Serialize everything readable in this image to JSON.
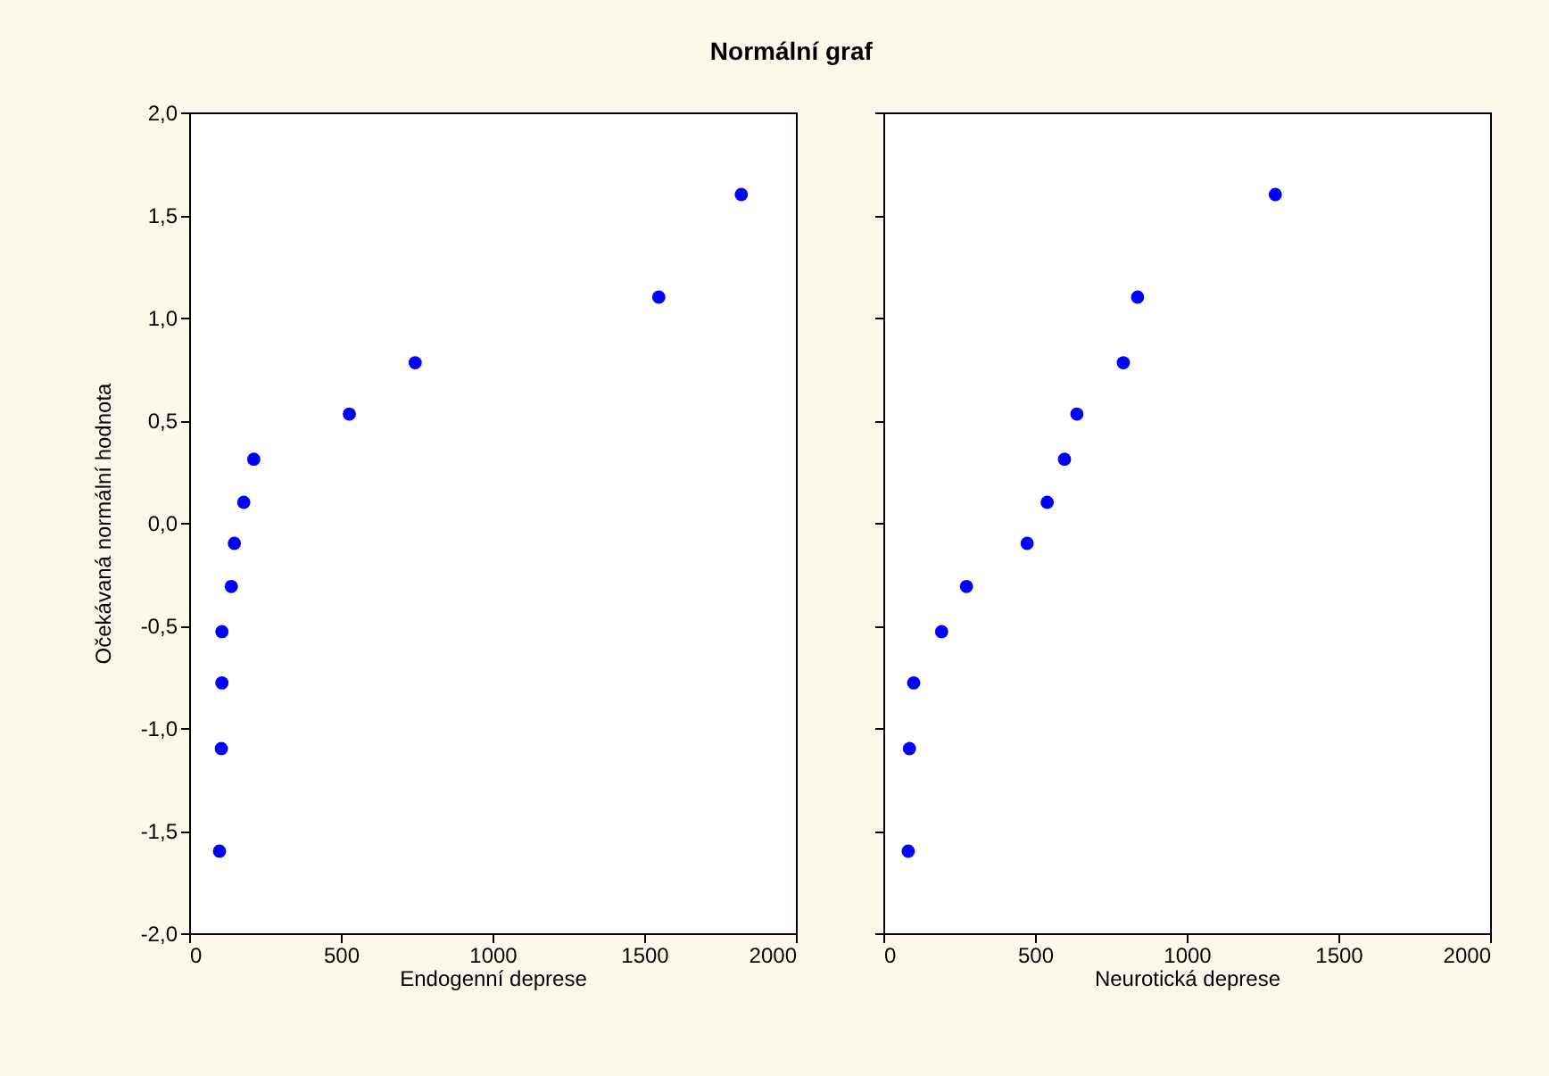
{
  "chart_data": [
    {
      "type": "scatter",
      "title": "Normální graf",
      "xlabel": "Endogenní deprese",
      "ylabel": "Očekávaná normální hodnota",
      "color": "#0000ff",
      "marker": "circle",
      "grid": false,
      "x": [
        100,
        106,
        108,
        108,
        139,
        149,
        180,
        213,
        528,
        745,
        1548,
        1820
      ],
      "values": [
        -1.6,
        -1.1,
        -0.78,
        -0.53,
        -0.31,
        -0.1,
        0.1,
        0.31,
        0.53,
        0.78,
        1.1,
        1.6
      ],
      "xlim": [
        0,
        2000
      ],
      "xticks": [
        0,
        500,
        1000,
        1500,
        2000
      ],
      "ylim": [
        -2,
        2
      ],
      "yticks": [
        {
          "value": -2,
          "label": "-2,0"
        },
        {
          "value": -1.5,
          "label": "-1,5"
        },
        {
          "value": -1,
          "label": "-1,0"
        },
        {
          "value": -0.5,
          "label": "-0,5"
        },
        {
          "value": 0,
          "label": "0,0"
        },
        {
          "value": 0.5,
          "label": "0,5"
        },
        {
          "value": 1,
          "label": "1,0"
        },
        {
          "value": 1.5,
          "label": "1,5"
        },
        {
          "value": 2,
          "label": "2,0"
        }
      ]
    },
    {
      "type": "scatter",
      "xlabel": "Neurotická deprese",
      "color": "#0000ff",
      "marker": "circle",
      "grid": false,
      "tick_labels": "x",
      "x": [
        82,
        86,
        100,
        192,
        274,
        474,
        540,
        597,
        638,
        791,
        838,
        1292
      ],
      "values": [
        -1.6,
        -1.1,
        -0.78,
        -0.53,
        -0.31,
        -0.1,
        0.1,
        0.31,
        0.53,
        0.78,
        1.1,
        1.6
      ],
      "xlim": [
        0,
        2000
      ],
      "xticks": [
        0,
        500,
        1000,
        1500,
        2000
      ],
      "ylim": [
        -2,
        2
      ],
      "yticks": [
        {
          "value": -2,
          "label": null
        },
        {
          "value": -1.5,
          "label": null
        },
        {
          "value": -1,
          "label": null
        },
        {
          "value": -0.5,
          "label": null
        },
        {
          "value": 0,
          "label": null
        },
        {
          "value": 0.5,
          "label": null
        },
        {
          "value": 1,
          "label": null
        },
        {
          "value": 1.5,
          "label": null
        },
        {
          "value": 2,
          "label": null
        }
      ]
    }
  ]
}
